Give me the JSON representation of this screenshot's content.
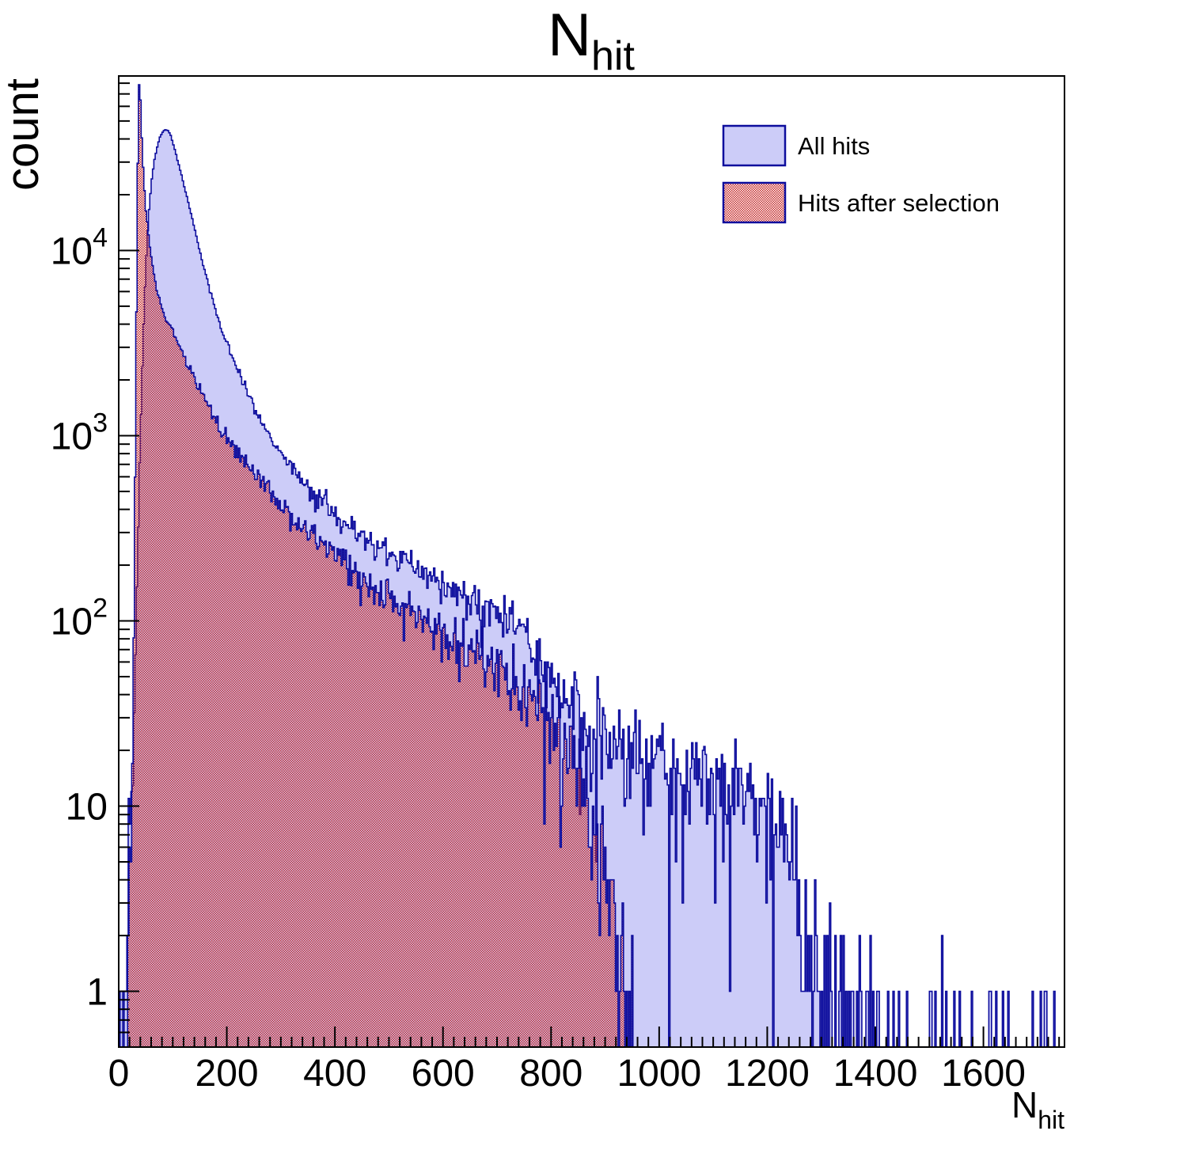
{
  "title": {
    "main": "N",
    "subscript": "hit"
  },
  "axes": {
    "x": {
      "label_main": "N",
      "label_subscript": "hit",
      "min": 0,
      "max": 1750,
      "major_tick_step": 200,
      "minor_tick_step": 20,
      "tick_labels": [
        {
          "value": 0,
          "label": "0"
        },
        {
          "value": 200,
          "label": "200"
        },
        {
          "value": 400,
          "label": "400"
        },
        {
          "value": 600,
          "label": "600"
        },
        {
          "value": 800,
          "label": "800"
        },
        {
          "value": 1000,
          "label": "1000"
        },
        {
          "value": 1200,
          "label": "1200"
        },
        {
          "value": 1400,
          "label": "1400"
        },
        {
          "value": 1600,
          "label": "1600"
        }
      ]
    },
    "y": {
      "label": "count",
      "scale": "log",
      "min": 0.5,
      "max": 87500,
      "tick_labels": [
        {
          "value": 1,
          "mantissa": "1",
          "exponent": ""
        },
        {
          "value": 10,
          "mantissa": "10",
          "exponent": ""
        },
        {
          "value": 100,
          "mantissa": "10",
          "exponent": "2"
        },
        {
          "value": 1000,
          "mantissa": "10",
          "exponent": "3"
        },
        {
          "value": 10000,
          "mantissa": "10",
          "exponent": "4"
        }
      ]
    }
  },
  "legend": {
    "items": [
      {
        "label": "All hits",
        "swatch": "solid-lavender"
      },
      {
        "label": "Hits after selection",
        "swatch": "red-checker"
      }
    ]
  },
  "colors": {
    "outline": "#0d0d9d",
    "blue_fill": "#ccccf8",
    "red_hatch": "#c42828",
    "frame": "#000000"
  },
  "chart_data": {
    "type": "histogram",
    "title": "N_hit",
    "xlabel": "N_hit",
    "ylabel": "count",
    "xlim": [
      0,
      1750
    ],
    "ylim": [
      0.5,
      87500
    ],
    "yscale": "log",
    "grid": false,
    "legend_position": "top-right",
    "bin_width": 2.5,
    "series": [
      {
        "name": "All hits",
        "style": "solid",
        "peak": {
          "x": 88,
          "count": 45000
        },
        "envelope": [
          [
            0,
            0.2
          ],
          [
            4,
            0.7
          ],
          [
            8,
            1.1
          ],
          [
            12,
            1.6
          ],
          [
            16,
            2.6
          ],
          [
            20,
            5
          ],
          [
            24,
            11
          ],
          [
            28,
            30
          ],
          [
            32,
            95
          ],
          [
            36,
            320
          ],
          [
            40,
            950
          ],
          [
            44,
            2500
          ],
          [
            48,
            5800
          ],
          [
            52,
            10500
          ],
          [
            56,
            16500
          ],
          [
            60,
            22500
          ],
          [
            64,
            28000
          ],
          [
            68,
            33000
          ],
          [
            72,
            37000
          ],
          [
            76,
            40500
          ],
          [
            80,
            43000
          ],
          [
            84,
            44600
          ],
          [
            88,
            45000
          ],
          [
            92,
            44200
          ],
          [
            96,
            42000
          ],
          [
            104,
            35000
          ],
          [
            112,
            28500
          ],
          [
            120,
            23000
          ],
          [
            128,
            18500
          ],
          [
            136,
            14800
          ],
          [
            144,
            11800
          ],
          [
            152,
            9400
          ],
          [
            160,
            7600
          ],
          [
            170,
            5900
          ],
          [
            180,
            4700
          ],
          [
            190,
            3800
          ],
          [
            200,
            3150
          ],
          [
            212,
            2560
          ],
          [
            224,
            2120
          ],
          [
            237,
            1750
          ],
          [
            250,
            1450
          ],
          [
            264,
            1210
          ],
          [
            278,
            1030
          ],
          [
            293,
            880
          ],
          [
            310,
            740
          ],
          [
            330,
            620
          ],
          [
            352,
            520
          ],
          [
            376,
            440
          ],
          [
            402,
            375
          ],
          [
            430,
            320
          ],
          [
            460,
            275
          ],
          [
            492,
            237
          ],
          [
            526,
            205
          ],
          [
            562,
            178
          ],
          [
            600,
            155
          ],
          [
            640,
            135
          ],
          [
            682,
            118
          ],
          [
            715,
            107
          ],
          [
            748,
            90
          ],
          [
            780,
            64
          ],
          [
            812,
            47
          ],
          [
            845,
            34
          ],
          [
            880,
            26
          ],
          [
            915,
            21
          ],
          [
            950,
            19
          ],
          [
            990,
            17
          ],
          [
            1030,
            15
          ],
          [
            1070,
            14
          ],
          [
            1110,
            13
          ],
          [
            1150,
            12
          ],
          [
            1185,
            11
          ],
          [
            1210,
            9
          ],
          [
            1232,
            7
          ],
          [
            1250,
            5
          ],
          [
            1263,
            3.2
          ],
          [
            1277,
            2.2
          ],
          [
            1292,
            1.5
          ],
          [
            1308,
            1.1
          ],
          [
            1326,
            0.8
          ],
          [
            1348,
            0.55
          ],
          [
            1375,
            0.4
          ],
          [
            1408,
            0.32
          ],
          [
            1448,
            0.28
          ],
          [
            1495,
            0.26
          ],
          [
            1550,
            0.24
          ],
          [
            1612,
            0.22
          ],
          [
            1680,
            0.21
          ],
          [
            1750,
            0.2
          ]
        ]
      },
      {
        "name": "Hits after selection",
        "style": "checker",
        "peak": {
          "x": 38,
          "count": 81000
        },
        "cutoff": 955,
        "envelope": [
          [
            14,
            0.3
          ],
          [
            17,
            0.8
          ],
          [
            20,
            2
          ],
          [
            23,
            6
          ],
          [
            25,
            14
          ],
          [
            27,
            50
          ],
          [
            29,
            220
          ],
          [
            31,
            1100
          ],
          [
            33,
            5500
          ],
          [
            35,
            25000
          ],
          [
            36,
            50000
          ],
          [
            37,
            72000
          ],
          [
            38,
            81000
          ],
          [
            39,
            78000
          ],
          [
            40,
            68000
          ],
          [
            41,
            56000
          ],
          [
            42,
            46000
          ],
          [
            44,
            33000
          ],
          [
            46,
            25500
          ],
          [
            48,
            20500
          ],
          [
            50,
            17000
          ],
          [
            53,
            13800
          ],
          [
            56,
            11500
          ],
          [
            60,
            9400
          ],
          [
            64,
            7900
          ],
          [
            68,
            6800
          ],
          [
            72,
            5900
          ],
          [
            77,
            5200
          ],
          [
            82,
            4700
          ],
          [
            88,
            4250
          ],
          [
            94,
            3900
          ],
          [
            100,
            3700
          ],
          [
            108,
            3250
          ],
          [
            116,
            2870
          ],
          [
            124,
            2540
          ],
          [
            133,
            2230
          ],
          [
            142,
            1960
          ],
          [
            152,
            1710
          ],
          [
            163,
            1490
          ],
          [
            175,
            1290
          ],
          [
            188,
            1110
          ],
          [
            202,
            960
          ],
          [
            217,
            830
          ],
          [
            233,
            720
          ],
          [
            250,
            620
          ],
          [
            268,
            535
          ],
          [
            287,
            463
          ],
          [
            307,
            400
          ],
          [
            329,
            345
          ],
          [
            352,
            297
          ],
          [
            377,
            255
          ],
          [
            403,
            219
          ],
          [
            431,
            188
          ],
          [
            461,
            161
          ],
          [
            493,
            138
          ],
          [
            527,
            118
          ],
          [
            563,
            101
          ],
          [
            601,
            86
          ],
          [
            641,
            73
          ],
          [
            683,
            62
          ],
          [
            727,
            52
          ],
          [
            760,
            42
          ],
          [
            785,
            33
          ],
          [
            805,
            26
          ],
          [
            825,
            20
          ],
          [
            845,
            15
          ],
          [
            862,
            11
          ],
          [
            878,
            8
          ],
          [
            892,
            6
          ],
          [
            905,
            4.3
          ],
          [
            916,
            3
          ],
          [
            926,
            2.2
          ],
          [
            935,
            1.5
          ],
          [
            943,
            0.9
          ],
          [
            950,
            0.5
          ],
          [
            955,
            0.25
          ]
        ]
      }
    ]
  }
}
